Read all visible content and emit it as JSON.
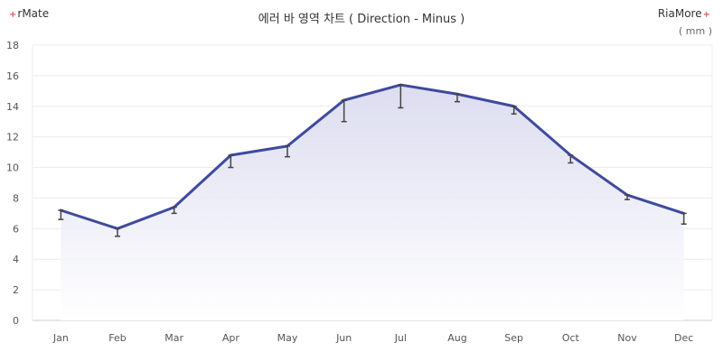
{
  "brand": {
    "left_label": "rMate",
    "right_label": "RiaMore",
    "mark": "+"
  },
  "chart_data": {
    "type": "area",
    "title": "에러 바 영역 차트 ( Direction - Minus )",
    "unit_label": "( mm )",
    "categories": [
      "Jan",
      "Feb",
      "Mar",
      "Apr",
      "May",
      "Jun",
      "Jul",
      "Aug",
      "Sep",
      "Oct",
      "Nov",
      "Dec"
    ],
    "values": [
      7.2,
      6.0,
      7.4,
      10.8,
      11.4,
      14.4,
      15.4,
      14.8,
      14.0,
      10.8,
      8.2,
      7.0
    ],
    "error_minus": [
      0.6,
      0.5,
      0.4,
      0.8,
      0.7,
      1.4,
      1.5,
      0.5,
      0.5,
      0.5,
      0.3,
      0.7
    ],
    "error_direction": "minus",
    "ylim": [
      0,
      18
    ],
    "yticks": [
      0,
      2,
      4,
      6,
      8,
      10,
      12,
      14,
      16,
      18
    ],
    "grid": true,
    "colors": {
      "line": "#3f4a9e",
      "fill_top": "#d8d9ee",
      "fill_bottom": "#ffffff",
      "error_bar": "#444444",
      "grid": "#ececec"
    }
  }
}
